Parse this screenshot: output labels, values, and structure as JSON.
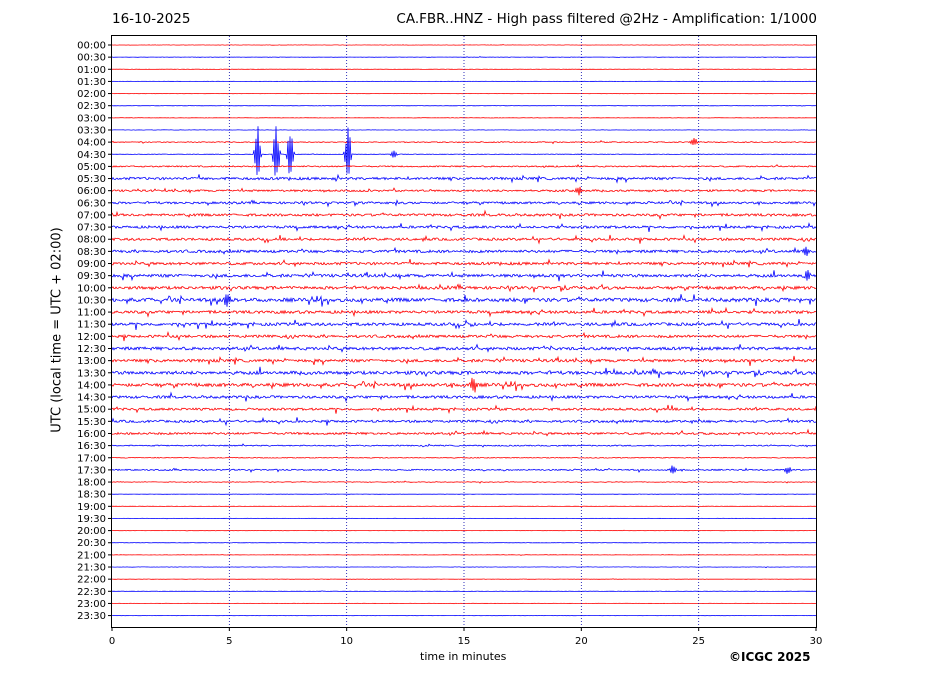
{
  "header": {
    "date": "16-10-2025",
    "title": "CA.FBR..HNZ - High pass filtered @2Hz - Amplification: 1/1000"
  },
  "footer": {
    "copyright": "©ICGC 2025"
  },
  "colors": {
    "even_trace": "#ff0000",
    "odd_trace": "#0000ff",
    "grid": "#0000aa"
  },
  "chart_data": {
    "type": "line",
    "subtype": "helicorder",
    "xlabel": "time in minutes",
    "ylabel": "UTC (local time = UTC + 02:00)",
    "xlim": [
      0,
      30
    ],
    "x_ticks": [
      0,
      5,
      10,
      15,
      20,
      25,
      30
    ],
    "grid": "vertical dotted at 5,10,15,20,25",
    "rows": [
      "00:00",
      "00:30",
      "01:00",
      "01:30",
      "02:00",
      "02:30",
      "03:00",
      "03:30",
      "04:00",
      "04:30",
      "05:00",
      "05:30",
      "06:00",
      "06:30",
      "07:00",
      "07:30",
      "08:00",
      "08:30",
      "09:00",
      "09:30",
      "10:00",
      "10:30",
      "11:00",
      "11:30",
      "12:00",
      "12:30",
      "13:00",
      "13:30",
      "14:00",
      "14:30",
      "15:00",
      "15:30",
      "16:00",
      "16:30",
      "17:00",
      "17:30",
      "18:00",
      "18:30",
      "19:00",
      "19:30",
      "20:00",
      "20:30",
      "21:00",
      "21:30",
      "22:00",
      "22:30",
      "23:00",
      "23:30"
    ],
    "activity_level": [
      0.2,
      0.2,
      0.2,
      0.2,
      0.2,
      0.2,
      0.2,
      0.2,
      0.6,
      0.3,
      0.8,
      1.5,
      1.2,
      1.3,
      1.5,
      1.5,
      1.5,
      1.6,
      1.6,
      1.8,
      1.8,
      2.2,
      1.7,
      1.8,
      1.6,
      1.8,
      1.7,
      2.0,
      2.0,
      1.6,
      1.4,
      1.4,
      1.3,
      0.7,
      0.5,
      0.8,
      0.4,
      0.2,
      0.2,
      0.2,
      0.2,
      0.2,
      0.2,
      0.2,
      0.2,
      0.2,
      0.2,
      0.2
    ],
    "events": [
      {
        "row": "04:30",
        "minute": 6.2,
        "amplitude": 3.0
      },
      {
        "row": "04:30",
        "minute": 7.0,
        "amplitude": 3.0
      },
      {
        "row": "04:30",
        "minute": 7.6,
        "amplitude": 3.0
      },
      {
        "row": "04:30",
        "minute": 10.05,
        "amplitude": 3.0
      },
      {
        "row": "04:30",
        "minute": 12.0,
        "amplitude": 0.4
      },
      {
        "row": "04:00",
        "minute": 24.8,
        "amplitude": 0.5
      },
      {
        "row": "06:00",
        "minute": 19.9,
        "amplitude": 0.5
      },
      {
        "row": "08:30",
        "minute": 29.6,
        "amplitude": 0.6
      },
      {
        "row": "09:30",
        "minute": 29.6,
        "amplitude": 0.8
      },
      {
        "row": "10:30",
        "minute": 4.9,
        "amplitude": 0.9
      },
      {
        "row": "14:00",
        "minute": 15.4,
        "amplitude": 0.9
      },
      {
        "row": "17:30",
        "minute": 23.9,
        "amplitude": 0.5
      },
      {
        "row": "17:30",
        "minute": 28.8,
        "amplitude": 0.4
      }
    ]
  }
}
